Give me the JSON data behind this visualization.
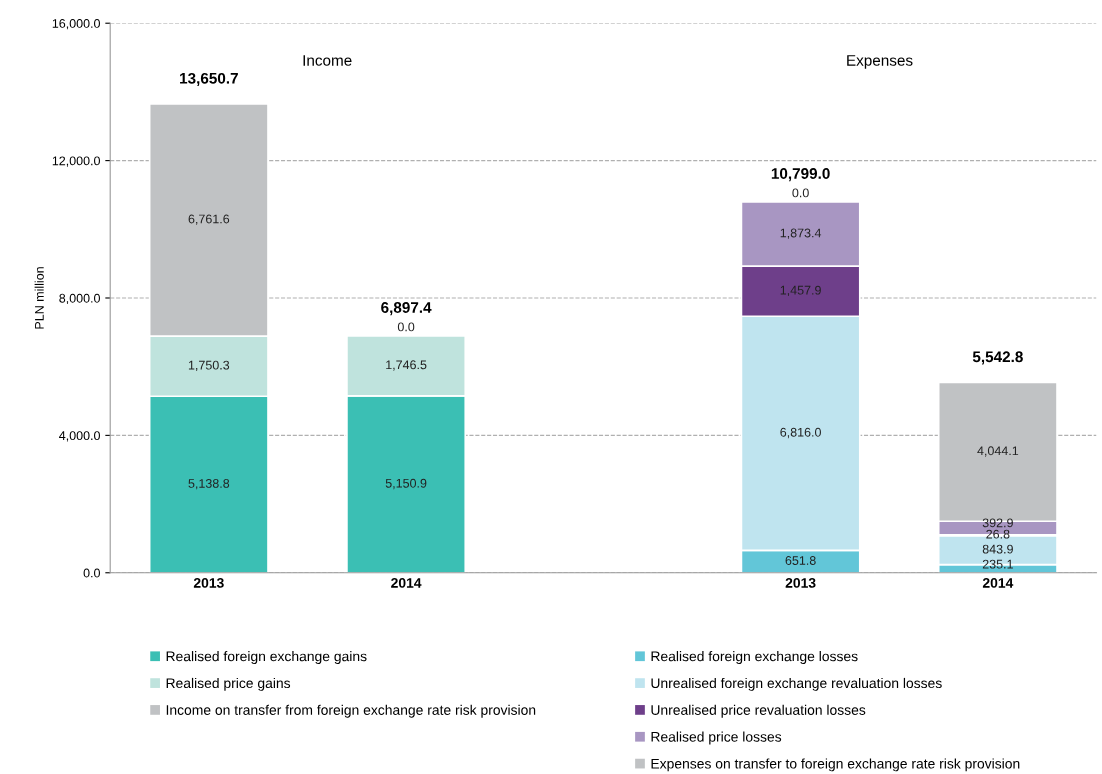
{
  "chart_data": {
    "type": "bar",
    "stacked": true,
    "ylabel": "PLN million",
    "categories": [
      "2013",
      "2014",
      null,
      "2013",
      "2014"
    ],
    "series": [
      {
        "name": "Realised foreign exchange gains",
        "color": "#3bbfb4",
        "values": [
          5138.8,
          5150.9,
          null,
          null,
          null
        ],
        "value_labels": [
          "5,138.8",
          "5,150.9",
          null,
          null,
          null
        ]
      },
      {
        "name": "Realised price gains",
        "color": "#bfe3dd",
        "values": [
          1750.3,
          1746.5,
          null,
          null,
          null
        ],
        "value_labels": [
          "1,750.3",
          "1,746.5",
          null,
          null,
          null
        ]
      },
      {
        "name": "Income on transfer from foreign exchange rate risk provision",
        "color": "#c0c2c4",
        "values": [
          6761.6,
          0.0,
          null,
          null,
          null
        ],
        "value_labels": [
          "6,761.6",
          "0.0",
          null,
          null,
          null
        ]
      },
      {
        "name": "Realised foreign exchange losses",
        "color": "#62c6d8",
        "values": [
          null,
          null,
          null,
          651.8,
          235.1
        ],
        "value_labels": [
          null,
          null,
          null,
          "651.8",
          "235.1"
        ]
      },
      {
        "name": "Unrealised foreign exchange revaluation losses",
        "color": "#bfe4ef",
        "values": [
          null,
          null,
          null,
          6816.0,
          843.9
        ],
        "value_labels": [
          null,
          null,
          null,
          "6,816.0",
          "843.9"
        ]
      },
      {
        "name": "Unrealised price revaluation losses",
        "color": "#6e3f8a",
        "values": [
          null,
          null,
          null,
          1457.9,
          26.8
        ],
        "value_labels": [
          null,
          null,
          null,
          "1,457.9",
          "26.8"
        ]
      },
      {
        "name": "Realised price losses",
        "color": "#a896c2",
        "values": [
          null,
          null,
          null,
          1873.4,
          392.9
        ],
        "value_labels": [
          null,
          null,
          null,
          "1,873.4",
          "392.9"
        ]
      },
      {
        "name": "Expenses on transfer to foreign exchange rate risk provision",
        "color": "#c0c2c4",
        "values": [
          null,
          null,
          null,
          0.0,
          4044.1
        ],
        "value_labels": [
          null,
          null,
          null,
          "0.0",
          "4,044.1"
        ]
      }
    ],
    "totals": [
      "13,650.7",
      "6,897.4",
      null,
      "10,799.0",
      "5,542.8"
    ],
    "annotations": [
      "Income",
      "Expenses"
    ],
    "ylim": [
      0,
      16000
    ],
    "yticks": [
      {
        "value": 0,
        "label": "0.0"
      },
      {
        "value": 4000,
        "label": "4,000.0"
      },
      {
        "value": 8000,
        "label": "8,000.0"
      },
      {
        "value": 12000,
        "label": "12,000.0"
      },
      {
        "value": 16000,
        "label": "16,000.0"
      }
    ],
    "grid": "y",
    "legend": "bottom"
  }
}
